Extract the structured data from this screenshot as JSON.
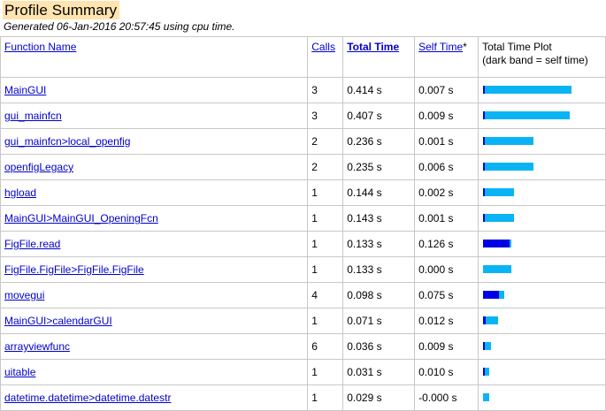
{
  "title": "Profile Summary",
  "subtitle": "Generated 06-Jan-2016 20:57:45 using cpu time.",
  "headers": {
    "function_name": "Function Name",
    "calls": "Calls",
    "total_time": "Total Time",
    "self_time": "Self Time",
    "self_time_mark": "*",
    "plot_line1": "Total Time Plot",
    "plot_line2": "(dark band = self time)"
  },
  "colors": {
    "total_bar": "#0ab4f4",
    "self_bar": "#0000e6",
    "title_bg": "#ffe4b0",
    "link": "#0000cc"
  },
  "rows": [
    {
      "name": "MainGUI",
      "calls": "3",
      "total": "0.414 s",
      "self": "0.007 s",
      "total_val": 0.414,
      "self_val": 0.007
    },
    {
      "name": "gui_mainfcn",
      "calls": "3",
      "total": "0.407 s",
      "self": "0.009 s",
      "total_val": 0.407,
      "self_val": 0.009
    },
    {
      "name": "gui_mainfcn>local_openfig",
      "calls": "2",
      "total": "0.236 s",
      "self": "0.001 s",
      "total_val": 0.236,
      "self_val": 0.001
    },
    {
      "name": "openfigLegacy",
      "calls": "2",
      "total": "0.235 s",
      "self": "0.006 s",
      "total_val": 0.235,
      "self_val": 0.006
    },
    {
      "name": "hgload",
      "calls": "1",
      "total": "0.144 s",
      "self": "0.002 s",
      "total_val": 0.144,
      "self_val": 0.002
    },
    {
      "name": "MainGUI>MainGUI_OpeningFcn",
      "calls": "1",
      "total": "0.143 s",
      "self": "0.001 s",
      "total_val": 0.143,
      "self_val": 0.001
    },
    {
      "name": "FigFile.read",
      "calls": "1",
      "total": "0.133 s",
      "self": "0.126 s",
      "total_val": 0.133,
      "self_val": 0.126
    },
    {
      "name": "FigFile.FigFile>FigFile.FigFile",
      "calls": "1",
      "total": "0.133 s",
      "self": "0.000 s",
      "total_val": 0.133,
      "self_val": 0.0
    },
    {
      "name": "movegui",
      "calls": "4",
      "total": "0.098 s",
      "self": "0.075 s",
      "total_val": 0.098,
      "self_val": 0.075
    },
    {
      "name": "MainGUI>calendarGUI",
      "calls": "1",
      "total": "0.071 s",
      "self": "0.012 s",
      "total_val": 0.071,
      "self_val": 0.012
    },
    {
      "name": "arrayviewfunc",
      "calls": "6",
      "total": "0.036 s",
      "self": "0.009 s",
      "total_val": 0.036,
      "self_val": 0.009
    },
    {
      "name": "uitable",
      "calls": "1",
      "total": "0.031 s",
      "self": "0.010 s",
      "total_val": 0.031,
      "self_val": 0.01
    },
    {
      "name": "datetime.datetime>datetime.datestr",
      "calls": "1",
      "total": "0.029 s",
      "self": "-0.000 s",
      "total_val": 0.029,
      "self_val": 0.0
    }
  ]
}
